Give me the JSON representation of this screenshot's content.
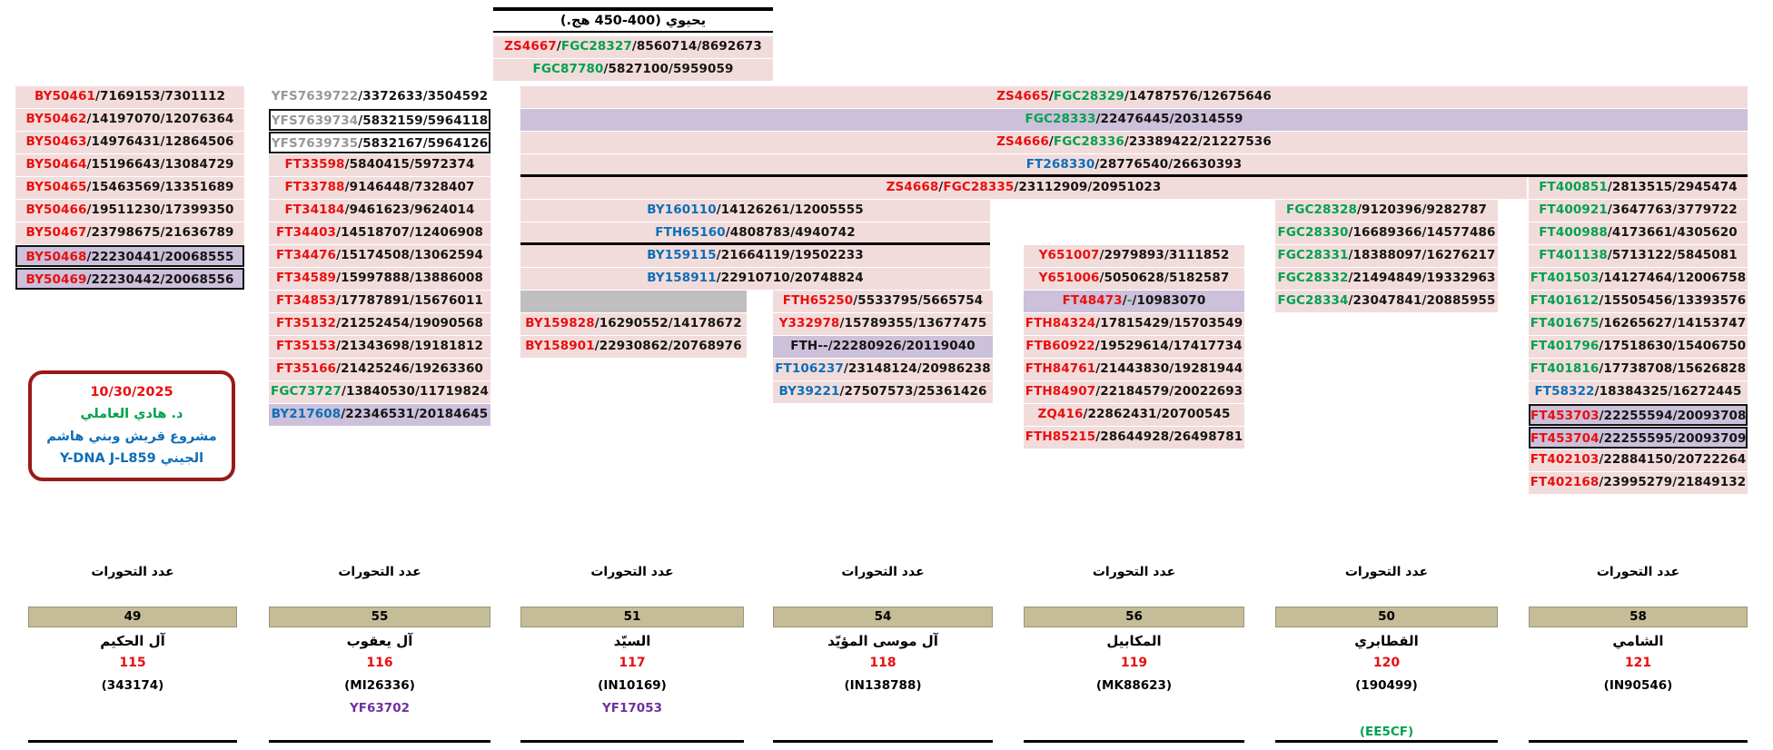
{
  "palette": {
    "row_bg_pink": "#f2dcdb",
    "row_bg_purple": "#ccc0da",
    "gray_bar": "#bfbfbf",
    "mutation_bar_khaki": "#c4bd97",
    "snp_red": "#e80f0f",
    "snp_green": "#00a14f",
    "snp_blue": "#0d6eb8",
    "snp_gray": "#979797",
    "yf_purple": "#7030a0",
    "info_box_border": "#9a1a1a"
  },
  "top": {
    "title": "يحيوي (400-450 هج.)"
  },
  "blocks": {
    "top_rows": [
      {
        "bg": "pink",
        "parts": [
          [
            "ZS4667",
            "red"
          ],
          [
            "/",
            "k"
          ],
          [
            "FGC28327",
            "green"
          ],
          [
            "/8560714/8692673",
            "k"
          ]
        ]
      },
      {
        "bg": "pink",
        "parts": [
          [
            "FGC87780",
            "green"
          ],
          [
            "/5827100/5959059",
            "k"
          ]
        ]
      }
    ],
    "col1": [
      {
        "bg": "pink",
        "parts": [
          [
            "BY50461",
            "red"
          ],
          [
            "/7169153/7301112",
            "k"
          ]
        ]
      },
      {
        "bg": "pink",
        "parts": [
          [
            "BY50462",
            "red"
          ],
          [
            "/14197070/12076364",
            "k"
          ]
        ]
      },
      {
        "bg": "pink",
        "parts": [
          [
            "BY50463",
            "red"
          ],
          [
            "/14976431/12864506",
            "k"
          ]
        ]
      },
      {
        "bg": "pink",
        "parts": [
          [
            "BY50464",
            "red"
          ],
          [
            "/15196643/13084729",
            "k"
          ]
        ]
      },
      {
        "bg": "pink",
        "parts": [
          [
            "BY50465",
            "red"
          ],
          [
            "/15463569/13351689",
            "k"
          ]
        ]
      },
      {
        "bg": "pink",
        "parts": [
          [
            "BY50466",
            "red"
          ],
          [
            "/19511230/17399350",
            "k"
          ]
        ]
      },
      {
        "bg": "pink",
        "parts": [
          [
            "BY50467",
            "red"
          ],
          [
            "/23798675/21636789",
            "k"
          ]
        ]
      },
      {
        "bg": "purple",
        "box": true,
        "parts": [
          [
            "BY50468",
            "red"
          ],
          [
            "/22230441/20068555",
            "k"
          ]
        ]
      },
      {
        "bg": "purple",
        "box": true,
        "parts": [
          [
            "BY50469",
            "red"
          ],
          [
            "/22230442/20068556",
            "k"
          ]
        ]
      }
    ],
    "col2": [
      {
        "parts": [
          [
            "YFS7639722",
            "gray"
          ],
          [
            "/3372633/3504592",
            "k"
          ]
        ]
      },
      {
        "box": true,
        "parts": [
          [
            "YFS7639734",
            "gray"
          ],
          [
            "/5832159/5964118",
            "k"
          ]
        ]
      },
      {
        "box": true,
        "parts": [
          [
            "YFS7639735",
            "gray"
          ],
          [
            "/5832167/5964126",
            "k"
          ]
        ]
      },
      {
        "bg": "pink",
        "parts": [
          [
            "FT33598",
            "red"
          ],
          [
            "/5840415/5972374",
            "k"
          ]
        ]
      },
      {
        "bg": "pink",
        "parts": [
          [
            "FT33788",
            "red"
          ],
          [
            "/9146448/7328407",
            "k"
          ]
        ]
      },
      {
        "bg": "pink",
        "parts": [
          [
            "FT34184",
            "red"
          ],
          [
            "/9461623/9624014",
            "k"
          ]
        ]
      },
      {
        "bg": "pink",
        "parts": [
          [
            "FT34403",
            "red"
          ],
          [
            "/14518707/12406908",
            "k"
          ]
        ]
      },
      {
        "bg": "pink",
        "parts": [
          [
            "FT34476",
            "red"
          ],
          [
            "/15174508/13062594",
            "k"
          ]
        ]
      },
      {
        "bg": "pink",
        "parts": [
          [
            "FT34589",
            "red"
          ],
          [
            "/15997888/13886008",
            "k"
          ]
        ]
      },
      {
        "bg": "pink",
        "parts": [
          [
            "FT34853",
            "red"
          ],
          [
            "/17787891/15676011",
            "k"
          ]
        ]
      },
      {
        "bg": "pink",
        "parts": [
          [
            "FT35132",
            "red"
          ],
          [
            "/21252454/19090568",
            "k"
          ]
        ]
      },
      {
        "bg": "pink",
        "parts": [
          [
            "FT35153",
            "red"
          ],
          [
            "/21343698/19181812",
            "k"
          ]
        ]
      },
      {
        "bg": "pink",
        "parts": [
          [
            "FT35166",
            "red"
          ],
          [
            "/21425246/19263360",
            "k"
          ]
        ]
      },
      {
        "bg": "pink",
        "parts": [
          [
            "FGC73727",
            "green"
          ],
          [
            "/13840530/11719824",
            "k"
          ]
        ]
      },
      {
        "bg": "purple",
        "parts": [
          [
            "BY217608",
            "blue"
          ],
          [
            "/22346531/20184645",
            "k"
          ]
        ]
      }
    ],
    "wide": [
      {
        "bg": "pink",
        "parts": [
          [
            "ZS4665",
            "red"
          ],
          [
            "/",
            "k"
          ],
          [
            "FGC28329",
            "green"
          ],
          [
            "/14787576/12675646",
            "k"
          ]
        ]
      },
      {
        "bg": "purple",
        "parts": [
          [
            "FGC28333",
            "green"
          ],
          [
            "/22476445/20314559",
            "k"
          ]
        ]
      },
      {
        "bg": "pink",
        "parts": [
          [
            "ZS4666",
            "red"
          ],
          [
            "/",
            "k"
          ],
          [
            "FGC28336",
            "green"
          ],
          [
            "/23389422/21227536",
            "k"
          ]
        ]
      },
      {
        "bg": "pink",
        "parts": [
          [
            "FT268330",
            "blue"
          ],
          [
            "/28776540/26630393",
            "k"
          ]
        ]
      }
    ],
    "zs4668": [
      {
        "bg": "pink",
        "parts": [
          [
            "ZS4668",
            "red"
          ],
          [
            "/",
            "k"
          ],
          [
            "FGC28335",
            "red"
          ],
          [
            "/23112909/20951023",
            "k"
          ]
        ]
      }
    ],
    "mid": [
      {
        "bg": "pink",
        "parts": [
          [
            "BY160110",
            "blue"
          ],
          [
            "/14126261/12005555",
            "k"
          ]
        ]
      },
      {
        "bg": "pink",
        "parts": [
          [
            "FTH65160",
            "blue"
          ],
          [
            "/4808783/4940742",
            "k"
          ]
        ]
      },
      {
        "bg": "pink",
        "parts": [
          [
            "BY159115",
            "blue"
          ],
          [
            "/21664119/19502233",
            "k"
          ]
        ]
      },
      {
        "bg": "pink",
        "parts": [
          [
            "BY158911",
            "blue"
          ],
          [
            "/22910710/20748824",
            "k"
          ]
        ]
      }
    ],
    "narrow": [
      {
        "bg": "graybar",
        "parts": []
      },
      {
        "bg": "pink",
        "parts": [
          [
            "BY159828",
            "red"
          ],
          [
            "/16290552/14178672",
            "k"
          ]
        ]
      },
      {
        "bg": "pink",
        "parts": [
          [
            "BY158901",
            "red"
          ],
          [
            "/22930862/20768976",
            "k"
          ]
        ]
      }
    ],
    "col4": [
      {
        "bg": "pink",
        "parts": [
          [
            "FTH65250",
            "red"
          ],
          [
            "/5533795/5665754",
            "k"
          ]
        ]
      },
      {
        "bg": "pink",
        "parts": [
          [
            "Y332978",
            "red"
          ],
          [
            "/15789355/13677475",
            "k"
          ]
        ]
      },
      {
        "bg": "purple",
        "parts": [
          [
            "FTH--",
            "k"
          ],
          [
            "/22280926/20119040",
            "k"
          ]
        ]
      },
      {
        "bg": "pink",
        "parts": [
          [
            "FT106237",
            "blue"
          ],
          [
            "/23148124/20986238",
            "k"
          ]
        ]
      },
      {
        "bg": "pink",
        "parts": [
          [
            "BY39221",
            "blue"
          ],
          [
            "/27507573/25361426",
            "k"
          ]
        ]
      }
    ],
    "col5": [
      {
        "bg": "pink",
        "parts": [
          [
            "Y651007",
            "red"
          ],
          [
            "/2979893/3111852",
            "k"
          ]
        ]
      },
      {
        "bg": "pink",
        "parts": [
          [
            "Y651006",
            "red"
          ],
          [
            "/5050628/5182587",
            "k"
          ]
        ]
      },
      {
        "bg": "purple",
        "parts": [
          [
            "FT48473",
            "red"
          ],
          [
            "/",
            "k"
          ],
          [
            "-",
            "green"
          ],
          [
            "/10983070",
            "k"
          ]
        ]
      },
      {
        "bg": "pink",
        "parts": [
          [
            "FTH84324",
            "red"
          ],
          [
            "/17815429/15703549",
            "k"
          ]
        ]
      },
      {
        "bg": "pink",
        "parts": [
          [
            "FTB60922",
            "red"
          ],
          [
            "/19529614/17417734",
            "k"
          ]
        ]
      },
      {
        "bg": "pink",
        "parts": [
          [
            "FTH84761",
            "red"
          ],
          [
            "/21443830/19281944",
            "k"
          ]
        ]
      },
      {
        "bg": "pink",
        "parts": [
          [
            "FTH84907",
            "red"
          ],
          [
            "/22184579/20022693",
            "k"
          ]
        ]
      },
      {
        "bg": "pink",
        "parts": [
          [
            "ZQ416",
            "red"
          ],
          [
            "/22862431/20700545",
            "k"
          ]
        ]
      },
      {
        "bg": "pink",
        "parts": [
          [
            "FTH85215",
            "red"
          ],
          [
            "/28644928/26498781",
            "k"
          ]
        ]
      }
    ],
    "col6": [
      {
        "bg": "pink",
        "parts": [
          [
            "FGC28328",
            "green"
          ],
          [
            "/9120396/9282787",
            "k"
          ]
        ]
      },
      {
        "bg": "pink",
        "parts": [
          [
            "FGC28330",
            "green"
          ],
          [
            "/16689366/14577486",
            "k"
          ]
        ]
      },
      {
        "bg": "pink",
        "parts": [
          [
            "FGC28331",
            "green"
          ],
          [
            "/18388097/16276217",
            "k"
          ]
        ]
      },
      {
        "bg": "pink",
        "parts": [
          [
            "FGC28332",
            "green"
          ],
          [
            "/21494849/19332963",
            "k"
          ]
        ]
      },
      {
        "bg": "pink",
        "parts": [
          [
            "FGC28334",
            "green"
          ],
          [
            "/23047841/20885955",
            "k"
          ]
        ]
      }
    ],
    "col7": [
      {
        "bg": "pink",
        "parts": [
          [
            "FT400851",
            "green"
          ],
          [
            "/2813515/2945474",
            "k"
          ]
        ]
      },
      {
        "bg": "pink",
        "parts": [
          [
            "FT400921",
            "green"
          ],
          [
            "/3647763/3779722",
            "k"
          ]
        ]
      },
      {
        "bg": "pink",
        "parts": [
          [
            "FT400988",
            "green"
          ],
          [
            "/4173661/4305620",
            "k"
          ]
        ]
      },
      {
        "bg": "pink",
        "parts": [
          [
            "FT401138",
            "green"
          ],
          [
            "/5713122/5845081",
            "k"
          ]
        ]
      },
      {
        "bg": "pink",
        "parts": [
          [
            "FT401503",
            "green"
          ],
          [
            "/14127464/12006758",
            "k"
          ]
        ]
      },
      {
        "bg": "pink",
        "parts": [
          [
            "FT401612",
            "green"
          ],
          [
            "/15505456/13393576",
            "k"
          ]
        ]
      },
      {
        "bg": "pink",
        "parts": [
          [
            "FT401675",
            "green"
          ],
          [
            "/16265627/14153747",
            "k"
          ]
        ]
      },
      {
        "bg": "pink",
        "parts": [
          [
            "FT401796",
            "green"
          ],
          [
            "/17518630/15406750",
            "k"
          ]
        ]
      },
      {
        "bg": "pink",
        "parts": [
          [
            "FT401816",
            "green"
          ],
          [
            "/17738708/15626828",
            "k"
          ]
        ]
      },
      {
        "bg": "pink",
        "parts": [
          [
            "FT58322",
            "blue"
          ],
          [
            "/18384325/16272445",
            "k"
          ]
        ]
      },
      {
        "bg": "purple",
        "box": true,
        "parts": [
          [
            "FT453703",
            "red"
          ],
          [
            "/22255594/20093708",
            "k"
          ]
        ]
      },
      {
        "bg": "purple",
        "box": true,
        "parts": [
          [
            "FT453704",
            "red"
          ],
          [
            "/22255595/20093709",
            "k"
          ]
        ]
      },
      {
        "bg": "pink",
        "parts": [
          [
            "FT402103",
            "red"
          ],
          [
            "/22884150/20722264",
            "k"
          ]
        ]
      },
      {
        "bg": "pink",
        "parts": [
          [
            "FT402168",
            "red"
          ],
          [
            "/23995279/21849132",
            "k"
          ]
        ]
      }
    ]
  },
  "info": {
    "date": "10/30/2025",
    "doctor": "د. هادي العاملي",
    "project_line1": "مشروع قريش وبني هاشم",
    "project_line2": "الجيني Y-DNA J-L859"
  },
  "bottom": {
    "mutations_label": "عدد التحورات",
    "families": [
      {
        "mutations": "49",
        "name": "آل الحكيم",
        "number": "115",
        "kit": "(343174)",
        "yf": "",
        "extra": ""
      },
      {
        "mutations": "55",
        "name": "آل يعقوب",
        "number": "116",
        "kit": "(MI26336)",
        "yf": "YF63702",
        "extra": ""
      },
      {
        "mutations": "51",
        "name": "السيّد",
        "number": "117",
        "kit": "(IN10169)",
        "yf": "YF17053",
        "extra": ""
      },
      {
        "mutations": "54",
        "name": "آل موسى المؤيّد",
        "number": "118",
        "kit": "(IN138788)",
        "yf": "",
        "extra": ""
      },
      {
        "mutations": "56",
        "name": "المكابيل",
        "number": "119",
        "kit": "(MK88623)",
        "yf": "",
        "extra": ""
      },
      {
        "mutations": "50",
        "name": "القطابري",
        "number": "120",
        "kit": "(190499)",
        "yf": "",
        "extra": "(EE5CF)"
      },
      {
        "mutations": "58",
        "name": "الشامي",
        "number": "121",
        "kit": "(IN90546)",
        "yf": "",
        "extra": ""
      }
    ]
  }
}
